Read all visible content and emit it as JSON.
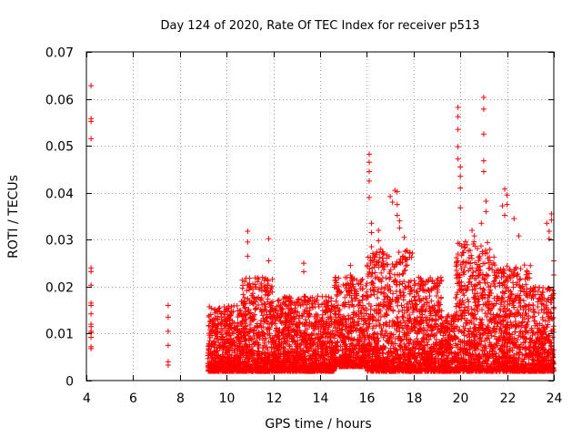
{
  "chart_data": {
    "type": "scatter",
    "title": "Day 124 of 2020, Rate Of TEC Index for receiver p513",
    "xlabel": "GPS time / hours",
    "ylabel": "ROTI / TECUs",
    "xlim": [
      4,
      24
    ],
    "ylim": [
      0,
      0.07
    ],
    "x_ticks": [
      4,
      6,
      8,
      10,
      12,
      14,
      16,
      18,
      20,
      22,
      24
    ],
    "x_tick_labels": [
      "4",
      "6",
      "8",
      "10",
      "12",
      "14",
      "16",
      "18",
      "20",
      "22",
      "24"
    ],
    "y_ticks": [
      0,
      0.01,
      0.02,
      0.03,
      0.04,
      0.05,
      0.06,
      0.07
    ],
    "y_tick_labels": [
      "0",
      "0.01",
      "0.02",
      "0.03",
      "0.04",
      "0.05",
      "0.06",
      "0.07"
    ],
    "grid": true,
    "marker": "+",
    "color": "#ff0000",
    "series": [
      {
        "name": "ROTI",
        "x": [
          4.2,
          4.2,
          4.2,
          4.2,
          4.2,
          4.2,
          4.2,
          4.2,
          4.2,
          4.2,
          4.2,
          4.2,
          4.2,
          4.2,
          4.2,
          4.2,
          4.2,
          7.5,
          7.5,
          7.5,
          7.5,
          7.5,
          7.5,
          10.9,
          10.9,
          10.9,
          11.8,
          11.8,
          13.3,
          13.3,
          15.3,
          15.3,
          16.1,
          16.1,
          16.1,
          16.1,
          16.1,
          16.2,
          16.2,
          16.2,
          16.5,
          16.5,
          17.0,
          17.1,
          17.2,
          17.3,
          17.3,
          17.3,
          17.4,
          17.4,
          17.6,
          19.9,
          19.9,
          19.9,
          19.9,
          19.9,
          20.0,
          20.0,
          20.0,
          20.0,
          20.5,
          20.6,
          20.9,
          21.0,
          21.0,
          21.0,
          21.0,
          21.0,
          21.1,
          21.1,
          21.8,
          21.9,
          21.9,
          22.0,
          22.0,
          22.3,
          22.5,
          23.7,
          23.8,
          23.8,
          23.9,
          23.9,
          24.0,
          24.0
        ],
        "y": [
          0.0628,
          0.0558,
          0.0552,
          0.0515,
          0.024,
          0.0232,
          0.0203,
          0.0165,
          0.016,
          0.0142,
          0.012,
          0.0115,
          0.0102,
          0.0092,
          0.0072,
          0.0068,
          0.0105,
          0.016,
          0.0135,
          0.0105,
          0.0075,
          0.004,
          0.0033,
          0.0318,
          0.0295,
          0.0265,
          0.0302,
          0.0255,
          0.025,
          0.0232,
          0.0245,
          0.0225,
          0.0482,
          0.0465,
          0.0445,
          0.0425,
          0.039,
          0.0335,
          0.0315,
          0.0285,
          0.032,
          0.0298,
          0.0392,
          0.038,
          0.0405,
          0.0402,
          0.0375,
          0.0352,
          0.034,
          0.0325,
          0.0305,
          0.0582,
          0.0562,
          0.0535,
          0.0498,
          0.0472,
          0.0455,
          0.0435,
          0.041,
          0.0368,
          0.032,
          0.0308,
          0.0335,
          0.0603,
          0.0578,
          0.0525,
          0.0468,
          0.0445,
          0.0382,
          0.036,
          0.0372,
          0.0352,
          0.0408,
          0.0395,
          0.0375,
          0.0345,
          0.0308,
          0.0335,
          0.0318,
          0.0302,
          0.0355,
          0.0342,
          0.0255,
          0.0225
        ]
      }
    ],
    "dense_activity": [
      {
        "x_start": 9.2,
        "x_end": 10.6,
        "y_low": 0.002,
        "y_high": 0.016
      },
      {
        "x_start": 10.6,
        "x_end": 12.0,
        "y_low": 0.002,
        "y_high": 0.022
      },
      {
        "x_start": 12.0,
        "x_end": 14.6,
        "y_low": 0.002,
        "y_high": 0.018
      },
      {
        "x_start": 14.6,
        "x_end": 16.0,
        "y_low": 0.003,
        "y_high": 0.022
      },
      {
        "x_start": 16.0,
        "x_end": 18.0,
        "y_low": 0.002,
        "y_high": 0.028
      },
      {
        "x_start": 18.0,
        "x_end": 19.2,
        "y_low": 0.002,
        "y_high": 0.022
      },
      {
        "x_start": 19.2,
        "x_end": 19.8,
        "y_low": 0.002,
        "y_high": 0.014
      },
      {
        "x_start": 19.8,
        "x_end": 21.5,
        "y_low": 0.002,
        "y_high": 0.03
      },
      {
        "x_start": 21.5,
        "x_end": 23.0,
        "y_low": 0.002,
        "y_high": 0.025
      },
      {
        "x_start": 23.0,
        "x_end": 24.0,
        "y_low": 0.002,
        "y_high": 0.02
      }
    ]
  }
}
